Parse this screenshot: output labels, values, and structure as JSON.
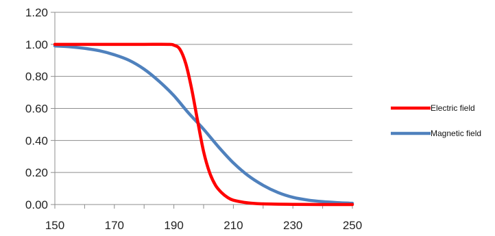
{
  "chart_data": {
    "type": "line",
    "x_axis": {
      "min": 150,
      "max": 250,
      "ticks": [
        150,
        170,
        190,
        210,
        230,
        250
      ]
    },
    "y_axis": {
      "min": 0,
      "max": 1.2,
      "ticks": [
        0,
        0.2,
        0.4,
        0.6,
        0.8,
        1.0,
        1.2
      ],
      "tick_labels": [
        "0.00",
        "0.20",
        "0.40",
        "0.60",
        "0.80",
        "1.00",
        "1.20"
      ]
    },
    "grid": "horizontal",
    "legend": "right",
    "series": [
      {
        "name": "Electric field",
        "color": "#ff0000",
        "x": [
          150,
          160,
          170,
          180,
          188,
          190,
          192,
          194,
          196,
          198,
          200,
          202,
          204,
          206,
          208,
          210,
          215,
          220,
          230,
          240,
          250
        ],
        "y": [
          1.0,
          1.0,
          1.0,
          1.0,
          1.0,
          0.995,
          0.97,
          0.88,
          0.72,
          0.52,
          0.33,
          0.2,
          0.12,
          0.075,
          0.045,
          0.027,
          0.01,
          0.004,
          0.001,
          0.0,
          0.0
        ]
      },
      {
        "name": "Magnetic field",
        "color": "#4f81bd",
        "x": [
          150,
          155,
          160,
          165,
          170,
          175,
          180,
          185,
          190,
          195,
          200,
          205,
          210,
          215,
          220,
          225,
          230,
          235,
          240,
          245,
          250
        ],
        "y": [
          0.99,
          0.985,
          0.975,
          0.96,
          0.935,
          0.9,
          0.845,
          0.77,
          0.68,
          0.57,
          0.47,
          0.36,
          0.26,
          0.18,
          0.12,
          0.075,
          0.045,
          0.028,
          0.018,
          0.012,
          0.008
        ]
      }
    ]
  }
}
